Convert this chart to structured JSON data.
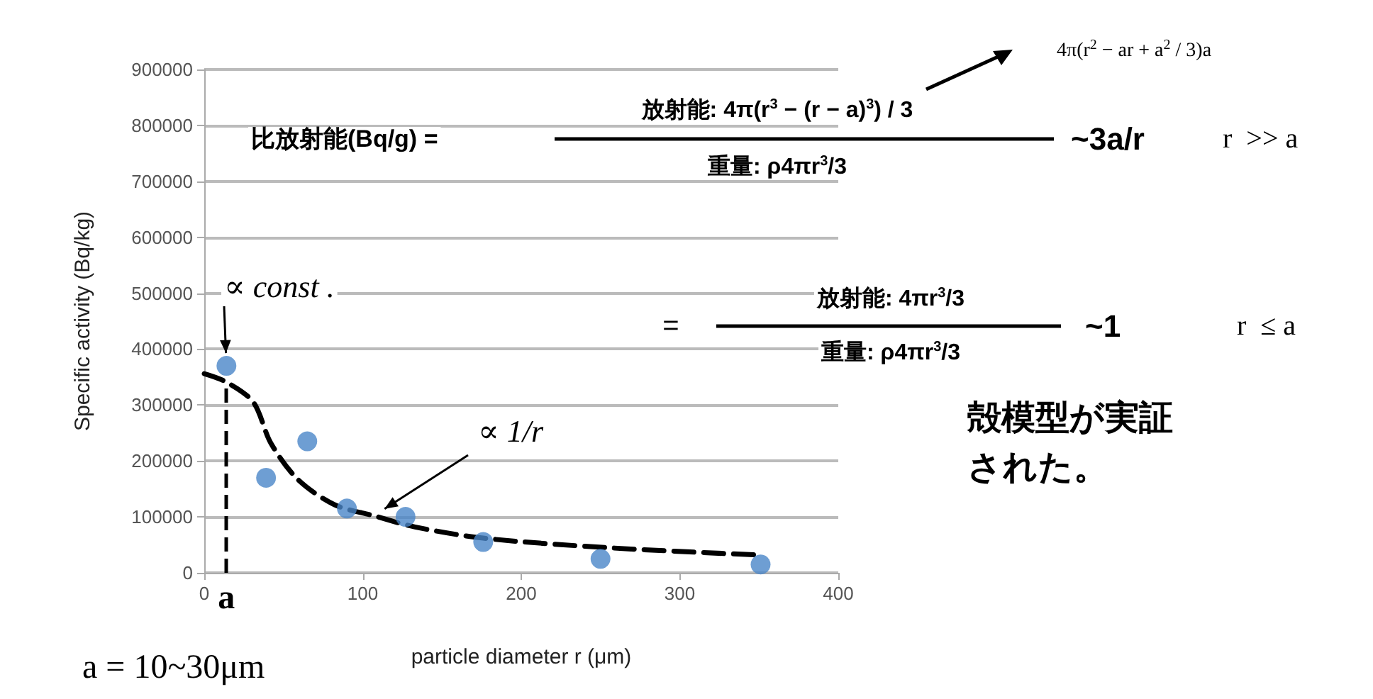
{
  "chart_data": {
    "type": "scatter",
    "xlabel": "particle diameter r (μm)",
    "ylabel": "Specific activity (Bq/kg)",
    "xlim": [
      0,
      400
    ],
    "xticks": [
      0,
      100,
      200,
      300,
      400
    ],
    "ylim": [
      0,
      900000
    ],
    "yticks": [
      0,
      100000,
      200000,
      300000,
      400000,
      500000,
      600000,
      700000,
      800000,
      900000
    ],
    "grid": "y",
    "series": [
      {
        "color": "#4a86c8",
        "marker": "circle",
        "x": [
          14,
          39,
          65,
          90,
          127,
          176,
          250,
          351
        ],
        "values": [
          370000,
          170000,
          235000,
          115000,
          100000,
          55000,
          25000,
          15000
        ]
      },
      {
        "type": "line",
        "color": "#000000",
        "marker": "none",
        "line_style": "dashed",
        "x": [
          0,
          14,
          31,
          42,
          59,
          82,
          107,
          133,
          176,
          254,
          348
        ],
        "values": [
          356000,
          341000,
          305000,
          232000,
          167000,
          122000,
          102000,
          82000,
          62000,
          45000,
          32000
        ]
      }
    ],
    "ref_lines": [
      {
        "axis": "x",
        "value": 14,
        "label": "a",
        "line_style": "dashed",
        "color": "#000000"
      }
    ],
    "annotations": [
      "比放射能(Bq/g) =",
      "放射能: 4π(r$^{3}$ − (r − a)$^{3}$) / 3",
      "重量: ρ4πr$^{3}$/3",
      "~3a/r",
      "r  >> a",
      "4π(r$^{2}$ − ar + a$^{2}$ / 3)a",
      "=",
      "放射能: 4πr$^{3}$/3",
      "重量: ρ4πr$^{3}$/3",
      "~1",
      "r  ≤ a",
      {
        "text": "∝ const .",
        "x": 14,
        "y": 370000
      },
      {
        "text": "∝ 1/r",
        "x": 107,
        "y": 102000
      },
      "殻模型が実証",
      "された。",
      "a = 10~30μm"
    ]
  }
}
